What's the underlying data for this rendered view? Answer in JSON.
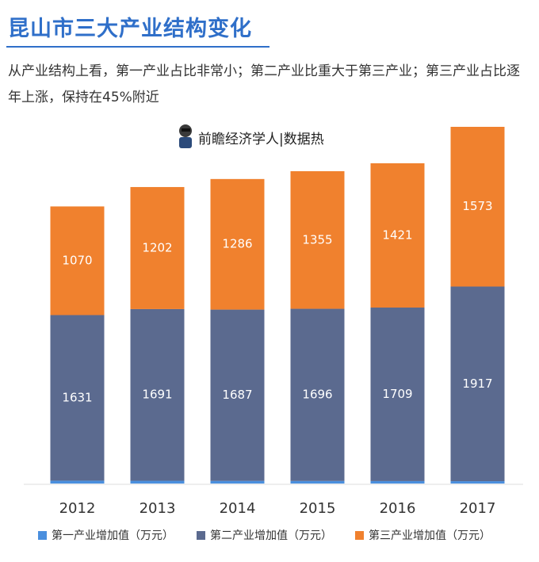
{
  "chart_data": {
    "type": "stacked_bar",
    "title": "昆山市三大产业结构变化",
    "subtitle": "从产业结构上看，第一产业占比非常小；第二产业比重大于第三产业；第三产业占比逐年上涨，保持在45%附近",
    "brand": "前瞻经济学人|数据热",
    "categories": [
      "2012",
      "2013",
      "2014",
      "2015",
      "2016",
      "2017"
    ],
    "series": [
      {
        "name": "第一产业增加值（万元）",
        "color": "#4a8fde",
        "values": [
          28,
          27,
          26,
          25,
          24,
          23
        ]
      },
      {
        "name": "第二产业增加值（万元）",
        "color": "#5b6a8f",
        "values": [
          1631,
          1691,
          1687,
          1696,
          1709,
          1917
        ]
      },
      {
        "name": "第三产业增加值（万元）",
        "color": "#f0812e",
        "values": [
          1070,
          1202,
          1286,
          1355,
          1421,
          1573
        ]
      }
    ],
    "labeled_series": [
      1,
      2
    ]
  }
}
